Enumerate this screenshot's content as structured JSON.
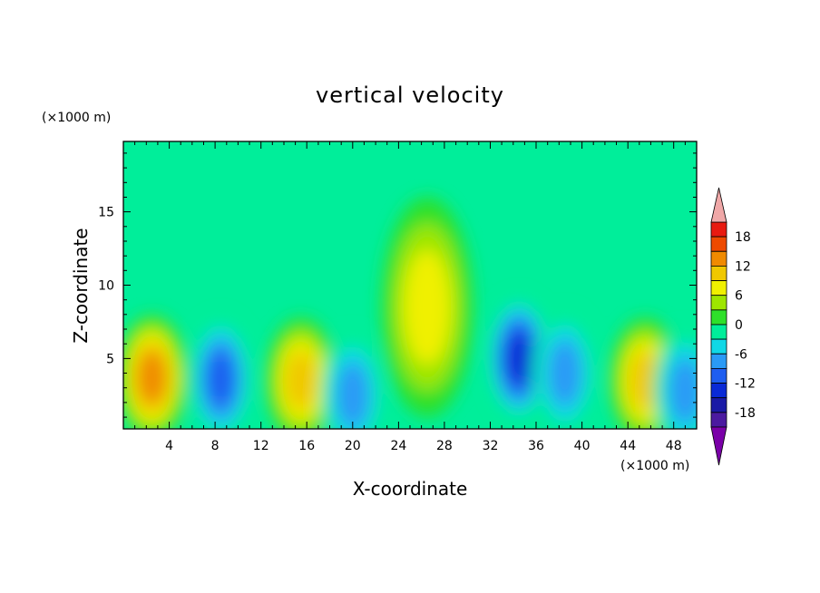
{
  "chart_data": {
    "type": "heatmap",
    "title": "vertical velocity",
    "xlabel": "X-coordinate",
    "ylabel": "Z-coordinate",
    "x_units": "(×1000 m)",
    "y_units": "(×1000 m)",
    "xlim": [
      0,
      50
    ],
    "ylim": [
      0.2,
      19.8
    ],
    "x_ticks": [
      "4",
      "8",
      "12",
      "16",
      "20",
      "24",
      "28",
      "32",
      "36",
      "40",
      "44",
      "48"
    ],
    "y_ticks": [
      "5",
      "10",
      "15"
    ],
    "colorbar": {
      "labels": [
        "18",
        "12",
        "6",
        "0",
        "-6",
        "-12",
        "-18"
      ],
      "levels": [
        -21,
        -18,
        -15,
        -12,
        -9,
        -6,
        -3,
        0,
        3,
        6,
        9,
        12,
        15,
        18,
        21
      ],
      "colors": [
        "#7a00a8",
        "#4b1aa0",
        "#1a1aa6",
        "#0a2ad6",
        "#1e5ef0",
        "#2a9af6",
        "#10d8e6",
        "#00ee9a",
        "#2ee02a",
        "#9ee600",
        "#f0f000",
        "#f0c800",
        "#f08a00",
        "#ee4a00",
        "#e81a10",
        "#f0a8a8"
      ],
      "extend": "both"
    },
    "features": [
      {
        "kind": "updraft",
        "x": 2.5,
        "z": 3.7,
        "peak": 14
      },
      {
        "kind": "downdraft",
        "x": 8.5,
        "z": 3.6,
        "peak": -13
      },
      {
        "kind": "updraft",
        "x": 15.5,
        "z": 3.5,
        "peak": 11
      },
      {
        "kind": "downdraft",
        "x": 20,
        "z": 2.5,
        "peak": -8
      },
      {
        "kind": "updraft",
        "x": 26.5,
        "z": 8.5,
        "peak": 10
      },
      {
        "kind": "downdraft",
        "x": 34.5,
        "z": 5,
        "peak": -14
      },
      {
        "kind": "downdraft",
        "x": 38.5,
        "z": 4,
        "peak": -10
      },
      {
        "kind": "updraft",
        "x": 45.5,
        "z": 3.5,
        "peak": 13
      },
      {
        "kind": "downdraft",
        "x": 49,
        "z": 2.8,
        "peak": -9
      }
    ]
  }
}
